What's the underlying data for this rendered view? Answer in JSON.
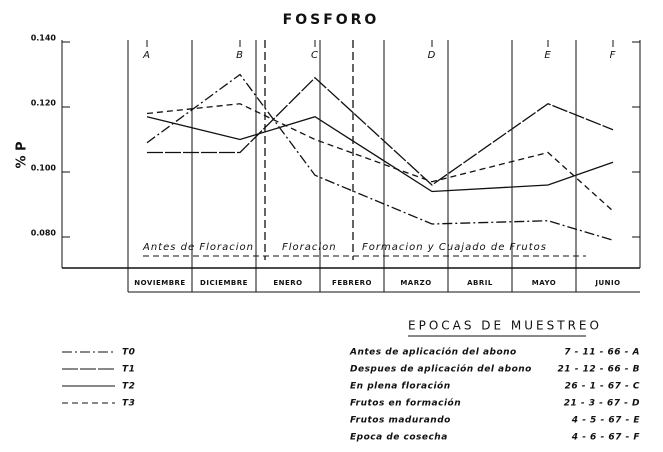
{
  "chart_data": {
    "type": "line",
    "title": "FOSFORO",
    "y_label": "% P",
    "categories": [
      "A",
      "B",
      "C",
      "D",
      "E",
      "F"
    ],
    "series": [
      {
        "name": "T0",
        "color": "#111111",
        "values": [
          0.109,
          0.13,
          0.099,
          0.084,
          0.085,
          0.079
        ]
      },
      {
        "name": "T1",
        "color": "#111111",
        "values": [
          0.106,
          0.106,
          0.129,
          0.096,
          0.121,
          0.113
        ]
      },
      {
        "name": "T2",
        "color": "#111111",
        "values": [
          0.117,
          0.11,
          0.117,
          0.094,
          0.096,
          0.103
        ]
      },
      {
        "name": "T3",
        "color": "#111111",
        "values": [
          0.118,
          0.121,
          0.11,
          0.097,
          0.106,
          0.088
        ]
      }
    ],
    "ylim": [
      0.07,
      0.14
    ],
    "yticks": [
      {
        "value": 0.08,
        "label": "0.080"
      },
      {
        "value": 0.1,
        "label": "0.100"
      },
      {
        "value": 0.12,
        "label": "0.120"
      },
      {
        "value": 0.14,
        "label": "0.140"
      }
    ],
    "months": [
      "NOVIEMBRE",
      "DICIEMBRE",
      "ENERO",
      "FEBRERO",
      "MARZO",
      "ABRIL",
      "MAYO",
      "JUNIO"
    ],
    "phases": [
      "Antes de Floracion",
      "Floracion",
      "Formacion y Cuajado de Frutos"
    ],
    "table": {
      "title": "EPOCAS DE MUESTREO",
      "rows": [
        [
          "Antes de aplicación del abono",
          "7 - 11 - 66 - A"
        ],
        [
          "Despues de aplicación del abono",
          "21 - 12 - 66 - B"
        ],
        [
          "En plena floración",
          "26 - 1 - 67 - C"
        ],
        [
          "Frutos en formación",
          "21 - 3 - 67 - D"
        ],
        [
          "Frutos madurando",
          "4 - 5 - 67 - E"
        ],
        [
          "Epoca de cosecha",
          "4 - 6 - 67 - F"
        ]
      ]
    }
  }
}
